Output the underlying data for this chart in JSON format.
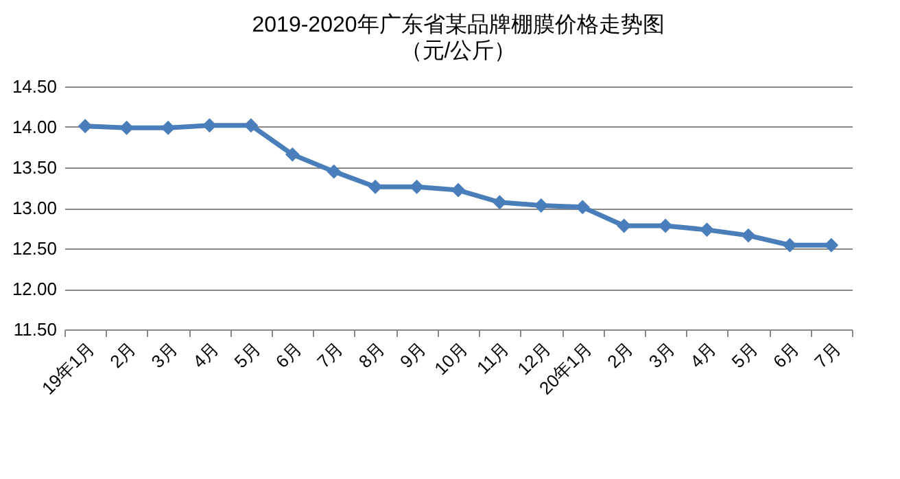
{
  "chart_data": {
    "type": "line",
    "title": "2019-2020年广东省某品牌棚膜价格走势图",
    "subtitle": "（元/公斤）",
    "categories": [
      "19年1月",
      "2月",
      "3月",
      "4月",
      "5月",
      "6月",
      "7月",
      "8月",
      "9月",
      "10月",
      "11月",
      "12月",
      "20年1月",
      "2月",
      "3月",
      "4月",
      "5月",
      "6月",
      "7月"
    ],
    "series": [
      {
        "color": "#4a7ebb",
        "values": [
          14.01,
          13.99,
          13.99,
          14.02,
          14.02,
          13.66,
          13.45,
          13.26,
          13.26,
          13.22,
          13.07,
          13.03,
          13.01,
          12.78,
          12.78,
          12.73,
          12.66,
          12.54,
          12.54
        ]
      }
    ],
    "ylim": [
      11.5,
      14.5
    ],
    "yticks": [
      {
        "value": 11.5,
        "label": "11.50"
      },
      {
        "value": 12,
        "label": "12.00"
      },
      {
        "value": 12.5,
        "label": "12.50"
      },
      {
        "value": 13,
        "label": "13.00"
      },
      {
        "value": 13.5,
        "label": "13.50"
      },
      {
        "value": 14,
        "label": "14.00"
      },
      {
        "value": 14.5,
        "label": "14.50"
      }
    ],
    "grid": "y",
    "marker": "diamond"
  }
}
